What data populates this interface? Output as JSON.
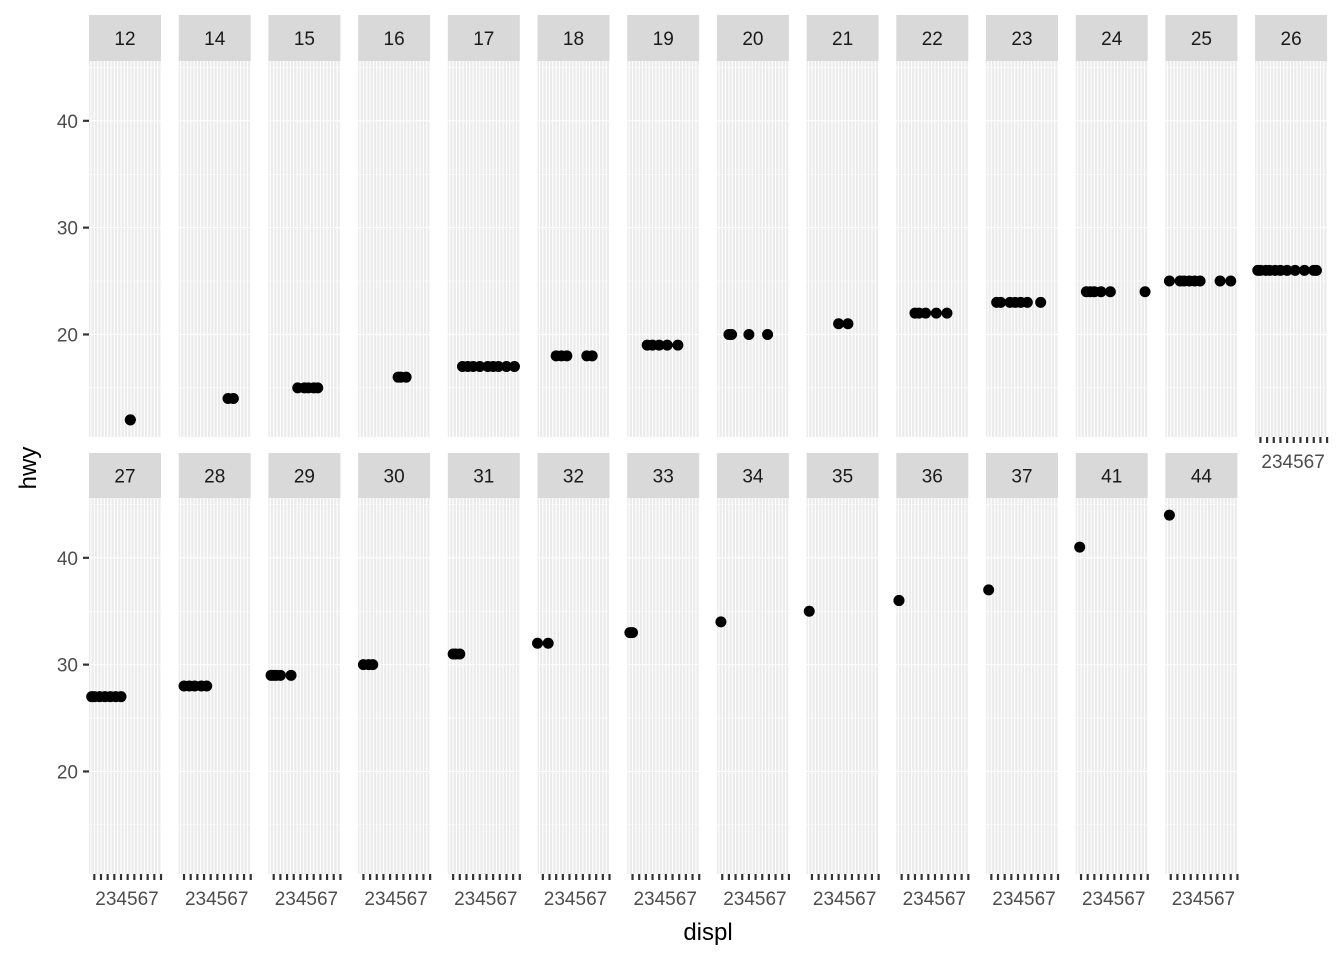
{
  "chart_data": {
    "type": "scatter",
    "facet_by": "hwy",
    "xlabel": "displ",
    "ylabel": "hwy",
    "x_tick_labels": [
      "2",
      "3",
      "4",
      "5",
      "6",
      "7"
    ],
    "y_ticks": [
      20,
      30,
      40
    ],
    "xlim": [
      1.6,
      7.0
    ],
    "ylim": [
      10.4,
      45.6
    ],
    "grid": true,
    "point_color": "#000000",
    "panel_background": "#ebebeb",
    "strip_background": "#d9d9d9",
    "facets": [
      {
        "label": "12",
        "points": [
          [
            4.7,
            12
          ],
          [
            4.7,
            12
          ]
        ]
      },
      {
        "label": "14",
        "points": [
          [
            5.3,
            14
          ],
          [
            5.7,
            14
          ]
        ]
      },
      {
        "label": "15",
        "points": [
          [
            3.8,
            15
          ],
          [
            4.3,
            15
          ],
          [
            4.6,
            15
          ],
          [
            5.0,
            15
          ],
          [
            5.3,
            15
          ]
        ]
      },
      {
        "label": "16",
        "points": [
          [
            4.6,
            16
          ],
          [
            4.8,
            16
          ],
          [
            5.2,
            16
          ]
        ]
      },
      {
        "label": "17",
        "points": [
          [
            2.7,
            17
          ],
          [
            3.1,
            17
          ],
          [
            3.5,
            17
          ],
          [
            4.0,
            17
          ],
          [
            4.6,
            17
          ],
          [
            5.0,
            17
          ],
          [
            5.4,
            17
          ],
          [
            6.0,
            17
          ],
          [
            6.6,
            17
          ]
        ]
      },
      {
        "label": "18",
        "points": [
          [
            3.0,
            18
          ],
          [
            3.4,
            18
          ],
          [
            3.8,
            18
          ],
          [
            5.3,
            18
          ],
          [
            5.7,
            18
          ]
        ]
      },
      {
        "label": "19",
        "points": [
          [
            3.1,
            19
          ],
          [
            3.5,
            19
          ],
          [
            4.0,
            19
          ],
          [
            4.6,
            19
          ],
          [
            5.4,
            19
          ]
        ]
      },
      {
        "label": "20",
        "points": [
          [
            2.5,
            20
          ],
          [
            2.7,
            20
          ],
          [
            4.0,
            20
          ],
          [
            5.4,
            20
          ]
        ]
      },
      {
        "label": "21",
        "points": [
          [
            4.0,
            21
          ],
          [
            4.7,
            21
          ]
        ]
      },
      {
        "label": "22",
        "points": [
          [
            3.0,
            22
          ],
          [
            3.3,
            22
          ],
          [
            3.8,
            22
          ],
          [
            4.6,
            22
          ],
          [
            5.4,
            22
          ]
        ]
      },
      {
        "label": "23",
        "points": [
          [
            2.4,
            23
          ],
          [
            2.7,
            23
          ],
          [
            3.4,
            23
          ],
          [
            3.8,
            23
          ],
          [
            4.2,
            23
          ],
          [
            4.7,
            23
          ],
          [
            5.7,
            23
          ]
        ]
      },
      {
        "label": "24",
        "points": [
          [
            2.4,
            24
          ],
          [
            2.7,
            24
          ],
          [
            3.0,
            24
          ],
          [
            3.5,
            24
          ],
          [
            4.2,
            24
          ],
          [
            6.8,
            24
          ]
        ]
      },
      {
        "label": "25",
        "points": [
          [
            1.9,
            25
          ],
          [
            2.7,
            25
          ],
          [
            3.0,
            25
          ],
          [
            3.4,
            25
          ],
          [
            3.8,
            25
          ],
          [
            4.2,
            25
          ],
          [
            5.7,
            25
          ],
          [
            6.5,
            25
          ]
        ]
      },
      {
        "label": "26",
        "points": [
          [
            1.8,
            26
          ],
          [
            2.0,
            26
          ],
          [
            2.4,
            26
          ],
          [
            2.7,
            26
          ],
          [
            3.1,
            26
          ],
          [
            3.5,
            26
          ],
          [
            4.0,
            26
          ],
          [
            4.6,
            26
          ],
          [
            5.3,
            26
          ],
          [
            6.0,
            26
          ],
          [
            6.2,
            26
          ]
        ]
      },
      {
        "label": "27",
        "points": [
          [
            1.8,
            27
          ],
          [
            2.0,
            27
          ],
          [
            2.4,
            27
          ],
          [
            2.8,
            27
          ],
          [
            3.2,
            27
          ],
          [
            3.6,
            27
          ],
          [
            4.0,
            27
          ]
        ]
      },
      {
        "label": "28",
        "points": [
          [
            2.0,
            28
          ],
          [
            2.4,
            28
          ],
          [
            2.8,
            28
          ],
          [
            3.3,
            28
          ],
          [
            3.7,
            28
          ]
        ]
      },
      {
        "label": "29",
        "points": [
          [
            1.8,
            29
          ],
          [
            2.0,
            29
          ],
          [
            2.2,
            29
          ],
          [
            2.5,
            29
          ],
          [
            3.3,
            29
          ]
        ]
      },
      {
        "label": "30",
        "points": [
          [
            2.0,
            30
          ],
          [
            2.4,
            30
          ],
          [
            2.7,
            30
          ]
        ]
      },
      {
        "label": "31",
        "points": [
          [
            2.0,
            31
          ],
          [
            2.2,
            31
          ],
          [
            2.5,
            31
          ]
        ]
      },
      {
        "label": "32",
        "points": [
          [
            1.6,
            32
          ],
          [
            2.4,
            32
          ]
        ]
      },
      {
        "label": "33",
        "points": [
          [
            1.8,
            33
          ],
          [
            2.0,
            33
          ]
        ]
      },
      {
        "label": "34",
        "points": [
          [
            1.9,
            34
          ]
        ]
      },
      {
        "label": "35",
        "points": [
          [
            1.8,
            35
          ]
        ]
      },
      {
        "label": "36",
        "points": [
          [
            1.8,
            36
          ],
          [
            1.8,
            36
          ]
        ]
      },
      {
        "label": "37",
        "points": [
          [
            1.8,
            37
          ]
        ]
      },
      {
        "label": "41",
        "points": [
          [
            1.9,
            41
          ]
        ]
      },
      {
        "label": "44",
        "points": [
          [
            1.9,
            44
          ]
        ]
      }
    ]
  }
}
